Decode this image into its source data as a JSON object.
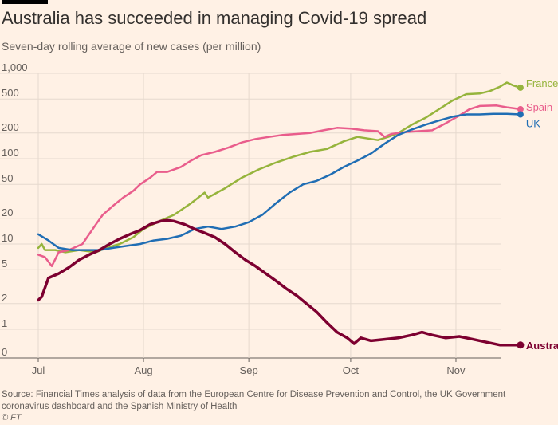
{
  "title": "Australia has succeeded in managing Covid-19 spread",
  "subtitle": "Seven-day rolling average of new cases (per million)",
  "source": "Source: Financial Times analysis of data from the European Centre for Disease Prevention and Control, the UK Government coronavirus dashboard and the Spanish Ministry of Health",
  "copyright": "© FT",
  "chart_data": {
    "type": "line",
    "title": "Australia has succeeded in managing Covid-19 spread",
    "subtitle": "Seven-day rolling average of new cases (per million)",
    "y_scale": "log",
    "y_ticks": [
      0,
      1,
      2,
      5,
      10,
      20,
      50,
      100,
      200,
      500,
      1000
    ],
    "y_tick_labels": [
      "0",
      "1",
      "2",
      "5",
      "10",
      "20",
      "50",
      "100",
      "200",
      "500",
      "1,000"
    ],
    "x_ticks": [
      "Jul",
      "Aug",
      "Sep",
      "Oct",
      "Nov"
    ],
    "x_tick_days": [
      0,
      31,
      62,
      92,
      123
    ],
    "grid": true,
    "series": [
      {
        "name": "France",
        "color": "#96b43c",
        "label_style": "bold-free",
        "points": [
          [
            0,
            9
          ],
          [
            1,
            10
          ],
          [
            2,
            8.5
          ],
          [
            5,
            8.5
          ],
          [
            8,
            8
          ],
          [
            12,
            8.5
          ],
          [
            17,
            8
          ],
          [
            20,
            9
          ],
          [
            24,
            10
          ],
          [
            28,
            12
          ],
          [
            31,
            15
          ],
          [
            35,
            18
          ],
          [
            40,
            22
          ],
          [
            45,
            30
          ],
          [
            49,
            40
          ],
          [
            50,
            35
          ],
          [
            55,
            45
          ],
          [
            60,
            60
          ],
          [
            65,
            75
          ],
          [
            70,
            90
          ],
          [
            75,
            105
          ],
          [
            80,
            120
          ],
          [
            85,
            130
          ],
          [
            90,
            160
          ],
          [
            94,
            180
          ],
          [
            98,
            170
          ],
          [
            100,
            165
          ],
          [
            103,
            180
          ],
          [
            106,
            200
          ],
          [
            110,
            250
          ],
          [
            114,
            300
          ],
          [
            118,
            380
          ],
          [
            122,
            480
          ],
          [
            126,
            570
          ],
          [
            130,
            580
          ],
          [
            133,
            620
          ],
          [
            136,
            700
          ],
          [
            138,
            780
          ],
          [
            140,
            720
          ],
          [
            142,
            680
          ]
        ]
      },
      {
        "name": "Spain",
        "color": "#e95d8c",
        "label_style": "normal",
        "points": [
          [
            0,
            7.5
          ],
          [
            2,
            7
          ],
          [
            4,
            5.5
          ],
          [
            6,
            8
          ],
          [
            9,
            8.5
          ],
          [
            13,
            10
          ],
          [
            17,
            17
          ],
          [
            19,
            22
          ],
          [
            22,
            28
          ],
          [
            25,
            35
          ],
          [
            28,
            42
          ],
          [
            30,
            50
          ],
          [
            33,
            60
          ],
          [
            35,
            70
          ],
          [
            38,
            70
          ],
          [
            42,
            80
          ],
          [
            45,
            95
          ],
          [
            48,
            110
          ],
          [
            52,
            120
          ],
          [
            56,
            135
          ],
          [
            60,
            155
          ],
          [
            64,
            170
          ],
          [
            68,
            180
          ],
          [
            72,
            190
          ],
          [
            76,
            195
          ],
          [
            80,
            200
          ],
          [
            84,
            215
          ],
          [
            88,
            230
          ],
          [
            92,
            225
          ],
          [
            96,
            215
          ],
          [
            100,
            210
          ],
          [
            102,
            180
          ],
          [
            104,
            195
          ],
          [
            108,
            205
          ],
          [
            112,
            210
          ],
          [
            116,
            215
          ],
          [
            120,
            260
          ],
          [
            124,
            320
          ],
          [
            127,
            380
          ],
          [
            130,
            415
          ],
          [
            135,
            420
          ],
          [
            138,
            400
          ],
          [
            140,
            390
          ],
          [
            142,
            380
          ]
        ]
      },
      {
        "name": "UK",
        "color": "#206eb4",
        "label_style": "normal",
        "points": [
          [
            0,
            13
          ],
          [
            3,
            11
          ],
          [
            6,
            9
          ],
          [
            10,
            8.5
          ],
          [
            14,
            8.5
          ],
          [
            18,
            8.5
          ],
          [
            22,
            9
          ],
          [
            26,
            9.5
          ],
          [
            30,
            10
          ],
          [
            34,
            11
          ],
          [
            38,
            11.5
          ],
          [
            42,
            12.5
          ],
          [
            46,
            15
          ],
          [
            50,
            16
          ],
          [
            54,
            15
          ],
          [
            58,
            16
          ],
          [
            62,
            18
          ],
          [
            66,
            22
          ],
          [
            70,
            30
          ],
          [
            74,
            40
          ],
          [
            78,
            50
          ],
          [
            82,
            55
          ],
          [
            86,
            65
          ],
          [
            90,
            80
          ],
          [
            94,
            95
          ],
          [
            98,
            115
          ],
          [
            102,
            150
          ],
          [
            106,
            190
          ],
          [
            110,
            220
          ],
          [
            114,
            250
          ],
          [
            118,
            280
          ],
          [
            122,
            310
          ],
          [
            126,
            330
          ],
          [
            130,
            330
          ],
          [
            134,
            335
          ],
          [
            138,
            335
          ],
          [
            142,
            330
          ]
        ]
      },
      {
        "name": "Australia",
        "color": "#7d0030",
        "label_style": "bold",
        "points": [
          [
            0,
            2.2
          ],
          [
            1,
            2.4
          ],
          [
            3,
            4
          ],
          [
            6,
            4.5
          ],
          [
            9,
            5.3
          ],
          [
            12,
            6.5
          ],
          [
            15,
            7.5
          ],
          [
            18,
            8.5
          ],
          [
            21,
            10
          ],
          [
            24,
            11.5
          ],
          [
            27,
            13
          ],
          [
            30,
            14.5
          ],
          [
            33,
            17
          ],
          [
            36,
            18.5
          ],
          [
            38,
            19
          ],
          [
            40,
            18.5
          ],
          [
            43,
            17
          ],
          [
            46,
            15
          ],
          [
            49,
            13.5
          ],
          [
            52,
            12
          ],
          [
            55,
            10
          ],
          [
            58,
            8
          ],
          [
            61,
            6.5
          ],
          [
            64,
            5.5
          ],
          [
            67,
            4.5
          ],
          [
            70,
            3.7
          ],
          [
            73,
            3
          ],
          [
            76,
            2.5
          ],
          [
            79,
            2
          ],
          [
            82,
            1.6
          ],
          [
            85,
            1.2
          ],
          [
            88,
            0.9
          ],
          [
            91,
            0.7
          ],
          [
            93,
            0.5
          ],
          [
            95,
            0.7
          ],
          [
            98,
            0.6
          ],
          [
            102,
            0.65
          ],
          [
            106,
            0.7
          ],
          [
            110,
            0.8
          ],
          [
            113,
            0.9
          ],
          [
            116,
            0.8
          ],
          [
            120,
            0.7
          ],
          [
            124,
            0.75
          ],
          [
            128,
            0.65
          ],
          [
            132,
            0.55
          ],
          [
            136,
            0.45
          ],
          [
            140,
            0.45
          ],
          [
            142,
            0.45
          ]
        ]
      }
    ]
  }
}
